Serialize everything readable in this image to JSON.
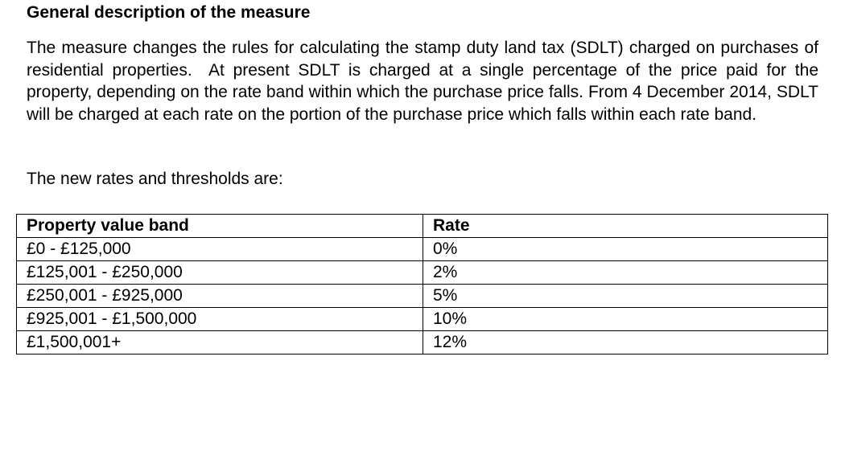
{
  "heading": "General description of the measure",
  "paragraph": "The measure changes the rules for calculating the stamp duty land tax (SDLT) charged on purchases of residential properties.  At present SDLT is charged at a single percentage of the price paid for the property, depending on the rate band within which the purchase price falls. From 4 December 2014, SDLT will be charged at each rate on the portion of the purchase price which falls within each rate band.",
  "intro": "The new rates and thresholds are:",
  "table": {
    "header": [
      "Property value band",
      "Rate"
    ],
    "rows": [
      [
        "£0 - £125,000",
        "0%"
      ],
      [
        "£125,001 - £250,000",
        "2%"
      ],
      [
        "£250,001 - £925,000",
        "5%"
      ],
      [
        "£925,001 - £1,500,000",
        "10%"
      ],
      [
        "£1,500,001+",
        "12%"
      ]
    ]
  }
}
